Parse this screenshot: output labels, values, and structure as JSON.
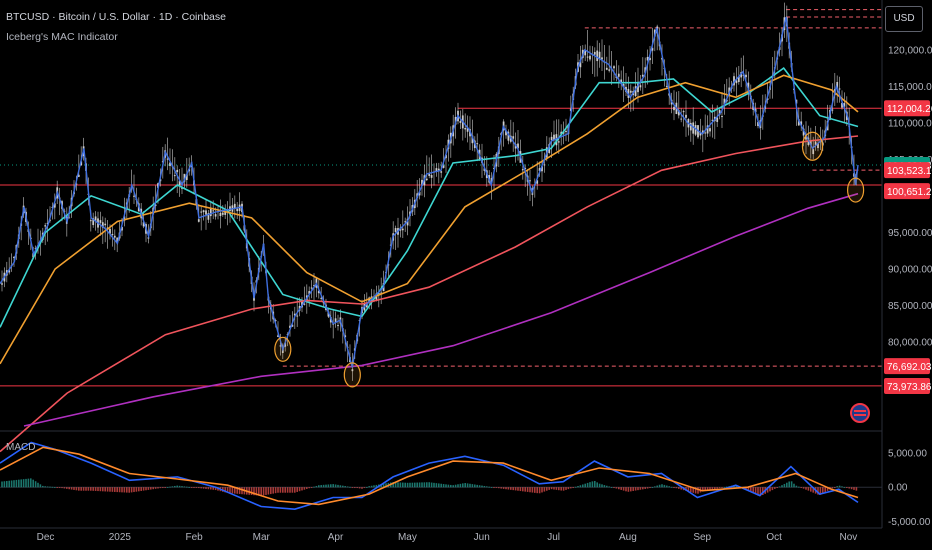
{
  "header": {
    "title": "BTCUSD · Bitcoin / U.S. Dollar · 1D · Coinbase",
    "indicator": "Iceberg's MAC Indicator",
    "currency_button": "USD"
  },
  "colors": {
    "background": "#000000",
    "candle": "#d7d7d7",
    "close_line": "#3f6fe0",
    "ma_fast": "#3ed6d1",
    "ma_mid": "#f0a030",
    "ma_slow": "#f0545c",
    "ma_200": "#b030c0",
    "resistance_line": "#f23645",
    "dashed_level": "#f2616c",
    "macd_line": "#2962ff",
    "signal_line": "#ff8a2c",
    "hist_pos": "#26a69a",
    "hist_neg": "#ef5350",
    "highlight_circle": "#f0a030"
  },
  "chart_data": {
    "type": "line",
    "title": "BTCUSD · Bitcoin / U.S. Dollar · 1D · Coinbase",
    "xlabel": "",
    "ylabel": "",
    "x_ticks": [
      "Dec",
      "2025",
      "Feb",
      "Mar",
      "Apr",
      "May",
      "Jun",
      "Jul",
      "Aug",
      "Sep",
      "Oct",
      "Nov"
    ],
    "ylim": [
      68500,
      126000
    ],
    "y_ticks": [
      "120,000.00",
      "115,000.00",
      "110,000.00",
      "105,000.00",
      "95,000.00",
      "90,000.00",
      "85,000.00",
      "80,000.00"
    ],
    "grid": false,
    "price_path": [
      {
        "d": "2024-11-12",
        "v": 88000
      },
      {
        "d": "2024-11-18",
        "v": 91000
      },
      {
        "d": "2024-11-22",
        "v": 98500
      },
      {
        "d": "2024-11-26",
        "v": 92000
      },
      {
        "d": "2024-12-02",
        "v": 96000
      },
      {
        "d": "2024-12-06",
        "v": 100500
      },
      {
        "d": "2024-12-10",
        "v": 96500
      },
      {
        "d": "2024-12-17",
        "v": 106500
      },
      {
        "d": "2024-12-20",
        "v": 97000
      },
      {
        "d": "2024-12-26",
        "v": 95500
      },
      {
        "d": "2024-12-31",
        "v": 93500
      },
      {
        "d": "2025-01-06",
        "v": 101500
      },
      {
        "d": "2025-01-13",
        "v": 94500
      },
      {
        "d": "2025-01-20",
        "v": 106000
      },
      {
        "d": "2025-01-27",
        "v": 101500
      },
      {
        "d": "2025-01-31",
        "v": 104500
      },
      {
        "d": "2025-02-03",
        "v": 97000
      },
      {
        "d": "2025-02-10",
        "v": 97800
      },
      {
        "d": "2025-02-21",
        "v": 98500
      },
      {
        "d": "2025-02-26",
        "v": 86000
      },
      {
        "d": "2025-03-02",
        "v": 93500
      },
      {
        "d": "2025-03-04",
        "v": 86000
      },
      {
        "d": "2025-03-10",
        "v": 79000
      },
      {
        "d": "2025-03-15",
        "v": 83500
      },
      {
        "d": "2025-03-24",
        "v": 88000
      },
      {
        "d": "2025-03-31",
        "v": 82500
      },
      {
        "d": "2025-04-03",
        "v": 83000
      },
      {
        "d": "2025-04-08",
        "v": 76500
      },
      {
        "d": "2025-04-12",
        "v": 84500
      },
      {
        "d": "2025-04-21",
        "v": 87500
      },
      {
        "d": "2025-04-25",
        "v": 94500
      },
      {
        "d": "2025-05-01",
        "v": 96500
      },
      {
        "d": "2025-05-09",
        "v": 103000
      },
      {
        "d": "2025-05-15",
        "v": 103500
      },
      {
        "d": "2025-05-22",
        "v": 111000
      },
      {
        "d": "2025-05-27",
        "v": 109000
      },
      {
        "d": "2025-06-05",
        "v": 101500
      },
      {
        "d": "2025-06-10",
        "v": 109500
      },
      {
        "d": "2025-06-16",
        "v": 106500
      },
      {
        "d": "2025-06-22",
        "v": 100500
      },
      {
        "d": "2025-06-30",
        "v": 107500
      },
      {
        "d": "2025-07-07",
        "v": 108500
      },
      {
        "d": "2025-07-11",
        "v": 117500
      },
      {
        "d": "2025-07-14",
        "v": 120000
      },
      {
        "d": "2025-07-24",
        "v": 118000
      },
      {
        "d": "2025-08-02",
        "v": 113500
      },
      {
        "d": "2025-08-08",
        "v": 116500
      },
      {
        "d": "2025-08-13",
        "v": 123000
      },
      {
        "d": "2025-08-19",
        "v": 113000
      },
      {
        "d": "2025-08-26",
        "v": 110000
      },
      {
        "d": "2025-09-01",
        "v": 108500
      },
      {
        "d": "2025-09-09",
        "v": 111500
      },
      {
        "d": "2025-09-14",
        "v": 115500
      },
      {
        "d": "2025-09-18",
        "v": 117000
      },
      {
        "d": "2025-09-25",
        "v": 109500
      },
      {
        "d": "2025-10-01",
        "v": 117000
      },
      {
        "d": "2025-10-06",
        "v": 124500
      },
      {
        "d": "2025-10-10",
        "v": 113000
      },
      {
        "d": "2025-10-11",
        "v": 110500
      },
      {
        "d": "2025-10-17",
        "v": 106500
      },
      {
        "d": "2025-10-22",
        "v": 108000
      },
      {
        "d": "2025-10-27",
        "v": 115000
      },
      {
        "d": "2025-11-01",
        "v": 110500
      },
      {
        "d": "2025-11-04",
        "v": 101500
      },
      {
        "d": "2025-11-05",
        "v": 104231.8
      }
    ],
    "series": [
      {
        "name": "",
        "role": "ma_fast",
        "points": [
          {
            "d": "2024-11-12",
            "v": 82000
          },
          {
            "d": "2024-12-01",
            "v": 95000
          },
          {
            "d": "2024-12-20",
            "v": 100000
          },
          {
            "d": "2025-01-10",
            "v": 97500
          },
          {
            "d": "2025-01-25",
            "v": 101500
          },
          {
            "d": "2025-02-15",
            "v": 98000
          },
          {
            "d": "2025-03-10",
            "v": 86500
          },
          {
            "d": "2025-03-30",
            "v": 84500
          },
          {
            "d": "2025-04-12",
            "v": 83500
          },
          {
            "d": "2025-05-01",
            "v": 92500
          },
          {
            "d": "2025-05-20",
            "v": 104500
          },
          {
            "d": "2025-06-15",
            "v": 105500
          },
          {
            "d": "2025-06-30",
            "v": 106500
          },
          {
            "d": "2025-07-20",
            "v": 115500
          },
          {
            "d": "2025-08-05",
            "v": 115500
          },
          {
            "d": "2025-08-20",
            "v": 116000
          },
          {
            "d": "2025-09-05",
            "v": 111500
          },
          {
            "d": "2025-09-20",
            "v": 114000
          },
          {
            "d": "2025-10-05",
            "v": 117500
          },
          {
            "d": "2025-10-20",
            "v": 111000
          },
          {
            "d": "2025-11-05",
            "v": 109500
          }
        ]
      },
      {
        "name": "",
        "role": "ma_mid",
        "points": [
          {
            "d": "2024-11-12",
            "v": 77000
          },
          {
            "d": "2024-12-05",
            "v": 90000
          },
          {
            "d": "2024-12-31",
            "v": 96500
          },
          {
            "d": "2025-01-30",
            "v": 99000
          },
          {
            "d": "2025-02-25",
            "v": 97000
          },
          {
            "d": "2025-03-20",
            "v": 89500
          },
          {
            "d": "2025-04-12",
            "v": 85500
          },
          {
            "d": "2025-05-01",
            "v": 88000
          },
          {
            "d": "2025-05-25",
            "v": 98500
          },
          {
            "d": "2025-06-20",
            "v": 103500
          },
          {
            "d": "2025-07-15",
            "v": 108500
          },
          {
            "d": "2025-08-05",
            "v": 113500
          },
          {
            "d": "2025-08-25",
            "v": 115500
          },
          {
            "d": "2025-09-15",
            "v": 113500
          },
          {
            "d": "2025-10-05",
            "v": 116500
          },
          {
            "d": "2025-10-25",
            "v": 114500
          },
          {
            "d": "2025-11-05",
            "v": 111500
          }
        ]
      },
      {
        "name": "",
        "role": "ma_slow",
        "points": [
          {
            "d": "2024-11-12",
            "v": 65000
          },
          {
            "d": "2024-12-10",
            "v": 73000
          },
          {
            "d": "2025-01-20",
            "v": 81000
          },
          {
            "d": "2025-02-25",
            "v": 84500
          },
          {
            "d": "2025-03-20",
            "v": 85700
          },
          {
            "d": "2025-04-12",
            "v": 85200
          },
          {
            "d": "2025-05-10",
            "v": 87500
          },
          {
            "d": "2025-06-15",
            "v": 93000
          },
          {
            "d": "2025-07-15",
            "v": 98500
          },
          {
            "d": "2025-08-15",
            "v": 103500
          },
          {
            "d": "2025-09-15",
            "v": 105800
          },
          {
            "d": "2025-10-15",
            "v": 107500
          },
          {
            "d": "2025-11-05",
            "v": 108200
          }
        ]
      },
      {
        "name": "",
        "role": "ma_200",
        "points": [
          {
            "d": "2024-11-22",
            "v": 68500
          },
          {
            "d": "2025-01-15",
            "v": 72500
          },
          {
            "d": "2025-03-01",
            "v": 75300
          },
          {
            "d": "2025-04-12",
            "v": 76800
          },
          {
            "d": "2025-05-20",
            "v": 79500
          },
          {
            "d": "2025-06-30",
            "v": 84000
          },
          {
            "d": "2025-08-10",
            "v": 89500
          },
          {
            "d": "2025-09-15",
            "v": 94500
          },
          {
            "d": "2025-10-15",
            "v": 98300
          },
          {
            "d": "2025-11-05",
            "v": 100300
          }
        ]
      }
    ],
    "horizontal_levels": [
      {
        "value": 112004.26,
        "label": "112,004.26",
        "style": "solid",
        "from": "2025-05-22"
      },
      {
        "value": 101500,
        "style": "solid",
        "from": "2024-11-12"
      },
      {
        "value": 74000,
        "style": "solid",
        "from": "2024-11-12"
      },
      {
        "value": 76692.03,
        "label": "76,692.03",
        "style": "dashed",
        "from": "2025-03-10"
      },
      {
        "value": 103523.1,
        "label": "103,523.10",
        "style": "dashed",
        "from": "2025-10-17"
      },
      {
        "value": 123000,
        "style": "dashed",
        "from": "2025-07-14"
      },
      {
        "value": 124500,
        "style": "dashed",
        "from": "2025-10-06"
      },
      {
        "value": 125500,
        "style": "dashed",
        "from": "2025-10-06"
      }
    ],
    "price_labels": [
      {
        "value": 104231.8,
        "label": "104,231.80",
        "color": "#089981"
      },
      {
        "value": 112004.26,
        "label": "112,004.26",
        "color": "#f23645"
      },
      {
        "value": 103523.1,
        "label": "103,523.10",
        "color": "#f23645"
      },
      {
        "value": 100651.21,
        "label": "100,651.21",
        "color": "#f23645"
      },
      {
        "value": 76692.03,
        "label": "76,692.03",
        "color": "#f23645"
      },
      {
        "value": 73973.86,
        "label": "73,973.86",
        "color": "#f23645"
      }
    ],
    "highlights": [
      {
        "d": "2025-03-10",
        "v": 79000
      },
      {
        "d": "2025-04-08",
        "v": 75500
      },
      {
        "d": "2025-10-17",
        "v": 106800
      },
      {
        "d": "2025-11-04",
        "v": 100800
      }
    ],
    "macd": {
      "label": "MACD",
      "ylim": [
        -5200,
        7300
      ],
      "y_ticks": [
        {
          "v": 5000,
          "label": "5,000.00"
        },
        {
          "v": 0,
          "label": "0.00"
        },
        {
          "v": -5000,
          "label": "-5,000.00"
        }
      ],
      "macd_line": [
        {
          "d": "2024-11-12",
          "v": 3500
        },
        {
          "d": "2024-11-25",
          "v": 6500
        },
        {
          "d": "2024-12-05",
          "v": 5500
        },
        {
          "d": "2024-12-20",
          "v": 3500
        },
        {
          "d": "2025-01-05",
          "v": 1000
        },
        {
          "d": "2025-01-25",
          "v": 1500
        },
        {
          "d": "2025-02-10",
          "v": 0
        },
        {
          "d": "2025-03-01",
          "v": -2800
        },
        {
          "d": "2025-03-15",
          "v": -3200
        },
        {
          "d": "2025-03-31",
          "v": -1500
        },
        {
          "d": "2025-04-12",
          "v": -1500
        },
        {
          "d": "2025-04-25",
          "v": 1500
        },
        {
          "d": "2025-05-10",
          "v": 3500
        },
        {
          "d": "2025-05-25",
          "v": 4500
        },
        {
          "d": "2025-06-10",
          "v": 3200
        },
        {
          "d": "2025-06-25",
          "v": 500
        },
        {
          "d": "2025-07-05",
          "v": 800
        },
        {
          "d": "2025-07-18",
          "v": 3800
        },
        {
          "d": "2025-08-01",
          "v": 1500
        },
        {
          "d": "2025-08-15",
          "v": 2000
        },
        {
          "d": "2025-08-30",
          "v": -1500
        },
        {
          "d": "2025-09-15",
          "v": 300
        },
        {
          "d": "2025-09-25",
          "v": -1200
        },
        {
          "d": "2025-10-08",
          "v": 3000
        },
        {
          "d": "2025-10-20",
          "v": -1000
        },
        {
          "d": "2025-10-28",
          "v": -300
        },
        {
          "d": "2025-11-05",
          "v": -2200
        }
      ],
      "signal_line": [
        {
          "d": "2024-11-12",
          "v": 2500
        },
        {
          "d": "2024-11-30",
          "v": 5800
        },
        {
          "d": "2024-12-15",
          "v": 4800
        },
        {
          "d": "2025-01-05",
          "v": 2000
        },
        {
          "d": "2025-01-25",
          "v": 1200
        },
        {
          "d": "2025-02-15",
          "v": 300
        },
        {
          "d": "2025-03-08",
          "v": -2000
        },
        {
          "d": "2025-03-25",
          "v": -2500
        },
        {
          "d": "2025-04-15",
          "v": -1000
        },
        {
          "d": "2025-05-01",
          "v": 1500
        },
        {
          "d": "2025-05-20",
          "v": 3800
        },
        {
          "d": "2025-06-10",
          "v": 3500
        },
        {
          "d": "2025-06-30",
          "v": 1000
        },
        {
          "d": "2025-07-20",
          "v": 2800
        },
        {
          "d": "2025-08-10",
          "v": 2000
        },
        {
          "d": "2025-09-01",
          "v": -500
        },
        {
          "d": "2025-09-20",
          "v": 0
        },
        {
          "d": "2025-10-10",
          "v": 2000
        },
        {
          "d": "2025-10-25",
          "v": -300
        },
        {
          "d": "2025-11-05",
          "v": -1500
        }
      ]
    }
  }
}
